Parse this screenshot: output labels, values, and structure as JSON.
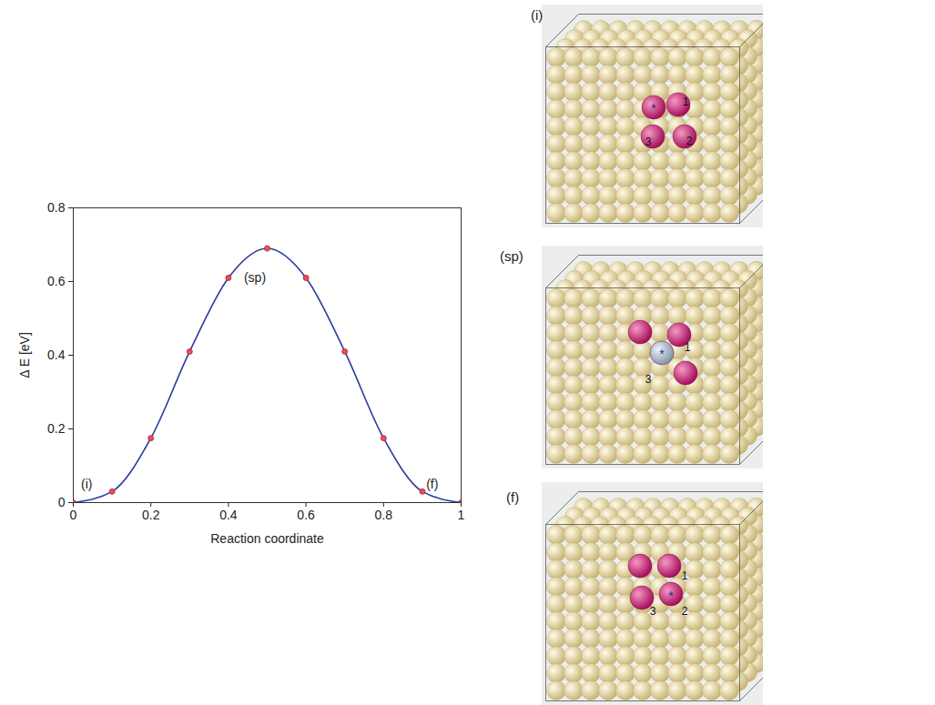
{
  "chart_data": {
    "type": "line",
    "x": [
      0,
      0.1,
      0.2,
      0.3,
      0.4,
      0.5,
      0.6,
      0.7,
      0.8,
      0.9,
      1
    ],
    "values": [
      0,
      0.03,
      0.175,
      0.41,
      0.61,
      0.69,
      0.61,
      0.41,
      0.175,
      0.03,
      0
    ],
    "color": "#2b3a9e",
    "marker": "circle",
    "line_style": "solid",
    "xlabel": "Reaction coordinate",
    "ylabel": "Δ E [eV]",
    "xlim": [
      0,
      1
    ],
    "xticks": [
      0,
      0.2,
      0.4,
      0.6,
      0.8,
      1
    ],
    "ylim": [
      0,
      0.8
    ],
    "yticks": [
      0,
      0.2,
      0.4,
      0.6,
      0.8
    ],
    "grid": false,
    "annotations": [
      {
        "text": "(i)",
        "x": 0.02,
        "y": 0.05
      },
      {
        "text": "(sp)",
        "x": 0.44,
        "y": 0.61
      },
      {
        "text": "(f)",
        "x": 0.91,
        "y": 0.05
      }
    ]
  },
  "panels": [
    {
      "label": "(i)",
      "atom_labels": [
        "*",
        "1",
        "2",
        "3"
      ]
    },
    {
      "label": "(sp)",
      "atom_labels": [
        "*",
        "1",
        "3"
      ]
    },
    {
      "label": "(f)",
      "atom_labels": [
        "*",
        "1",
        "2",
        "3"
      ]
    }
  ]
}
